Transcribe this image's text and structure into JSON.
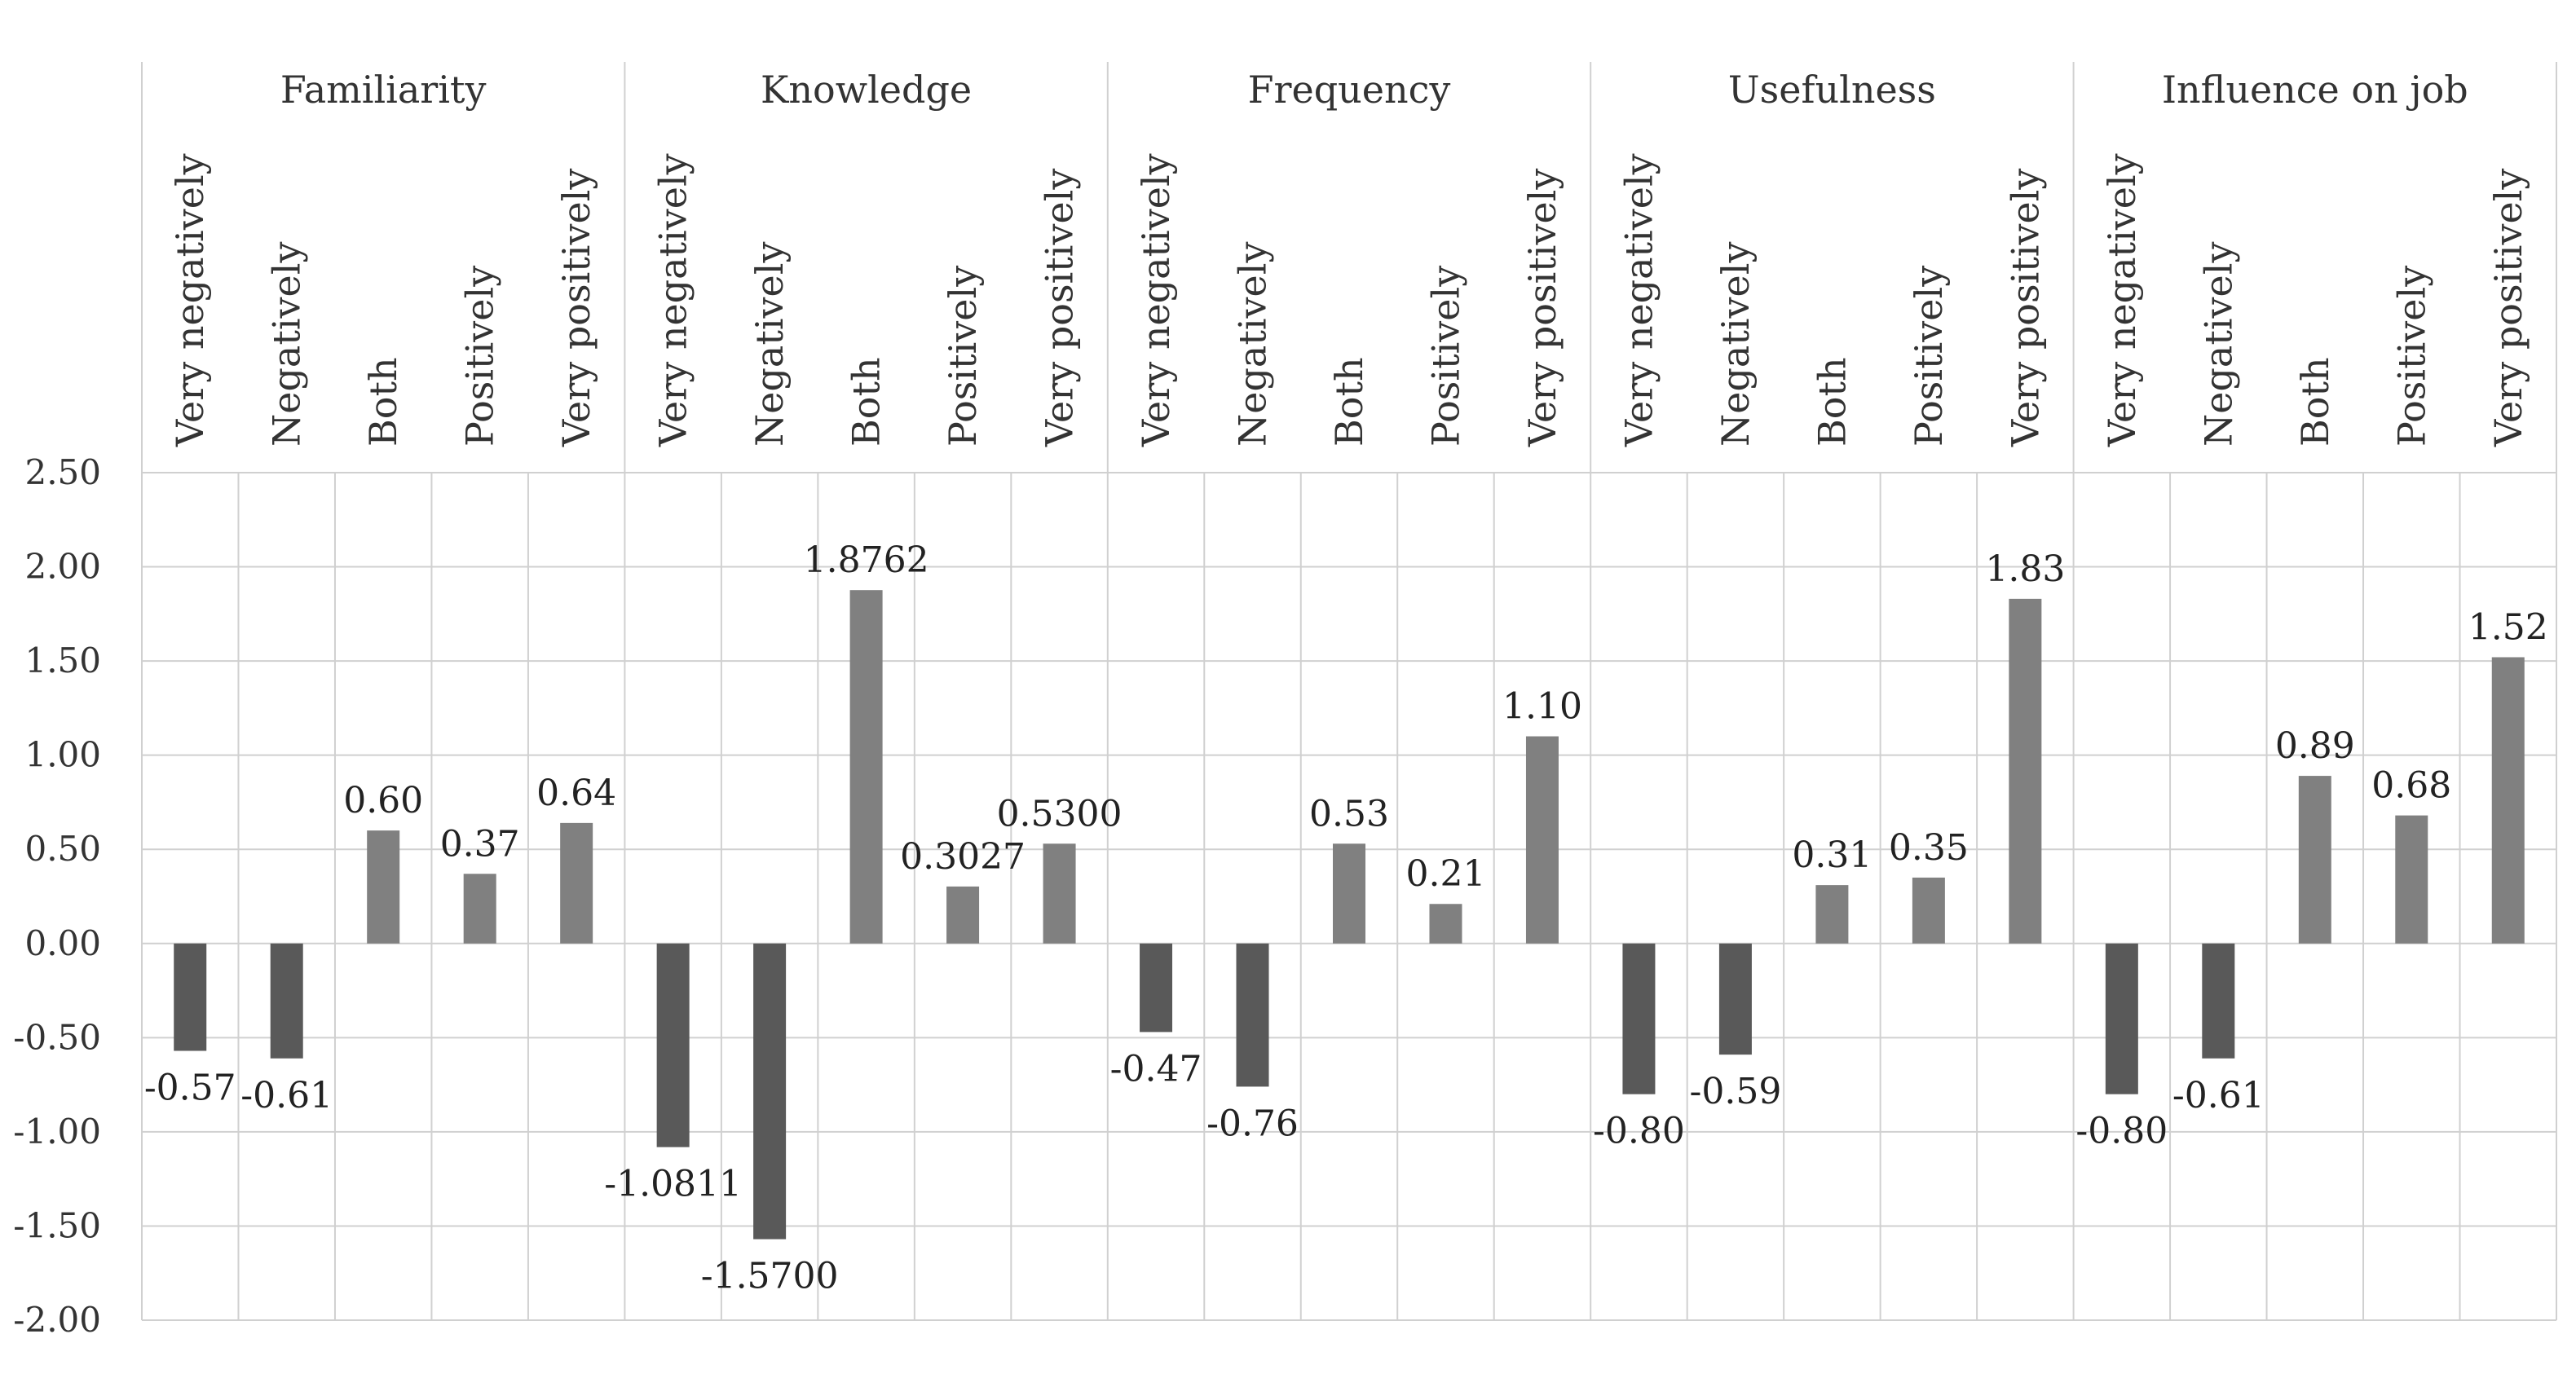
{
  "chart_data": {
    "type": "bar",
    "groups": [
      "Familiarity",
      "Knowledge",
      "Frequency",
      "Usefulness",
      "Influence on job"
    ],
    "categories": [
      "Very negatively",
      "Negatively",
      "Both",
      "Positively",
      "Very positively"
    ],
    "series": [
      {
        "group": "Familiarity",
        "values": [
          -0.57,
          -0.61,
          0.6,
          0.37,
          0.64
        ],
        "labels": [
          "-0.57",
          "-0.61",
          "0.60",
          "0.37",
          "0.64"
        ]
      },
      {
        "group": "Knowledge",
        "values": [
          -1.0811,
          -1.57,
          1.8762,
          0.3027,
          0.53
        ],
        "labels": [
          "-1.0811",
          "-1.5700",
          "1.8762",
          "0.3027",
          "0.5300"
        ]
      },
      {
        "group": "Frequency",
        "values": [
          -0.47,
          -0.76,
          0.53,
          0.21,
          1.1
        ],
        "labels": [
          "-0.47",
          "-0.76",
          "0.53",
          "0.21",
          "1.10"
        ]
      },
      {
        "group": "Usefulness",
        "values": [
          -0.8,
          -0.59,
          0.31,
          0.35,
          1.83
        ],
        "labels": [
          "-0.80",
          "-0.59",
          "0.31",
          "0.35",
          "1.83"
        ]
      },
      {
        "group": "Influence on job",
        "values": [
          -0.8,
          -0.61,
          0.89,
          0.68,
          1.52
        ],
        "labels": [
          "-0.80",
          "-0.61",
          "0.89",
          "0.68",
          "1.52"
        ]
      }
    ],
    "yticks": [
      "2.50",
      "2.00",
      "1.50",
      "1.00",
      "0.50",
      "0.00",
      "-0.50",
      "-1.00",
      "-1.50",
      "-2.00"
    ],
    "ylim": [
      -2.0,
      2.5
    ],
    "grid": true,
    "colors": {
      "negative": "#595959",
      "positive": "#808080",
      "grid": "#d0d0d0"
    }
  }
}
